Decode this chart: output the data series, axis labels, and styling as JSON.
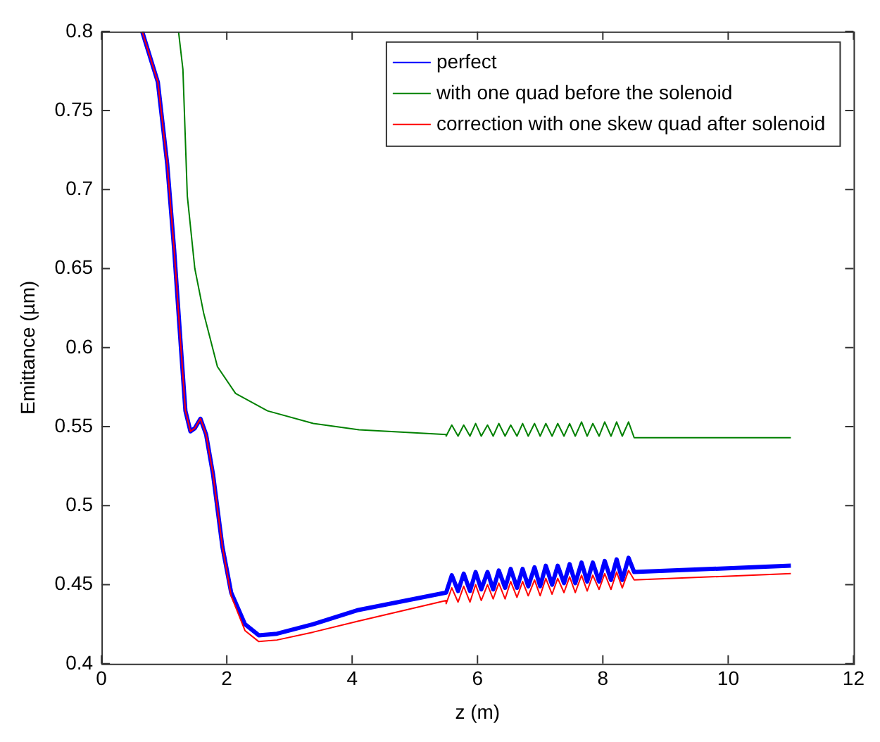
{
  "chart_data": {
    "type": "line",
    "xlabel": "z (m)",
    "ylabel": "Emittance (µm)",
    "xlim": [
      0,
      12
    ],
    "ylim": [
      0.4,
      0.8
    ],
    "xticks": [
      0,
      2,
      4,
      6,
      8,
      10,
      12
    ],
    "yticks": [
      0.4,
      0.45,
      0.5,
      0.55,
      0.6,
      0.65,
      0.7,
      0.75,
      0.8
    ],
    "grid": false,
    "legend": "top right",
    "marker": "none",
    "line_style": "solid",
    "series": [
      {
        "name": "perfect",
        "color": "#0000ff",
        "x": [
          0.65,
          0.9,
          1.05,
          1.16,
          1.27,
          1.34,
          1.42,
          1.49,
          1.58,
          1.67,
          1.78,
          1.93,
          2.07,
          2.29,
          2.51,
          2.8,
          3.38,
          4.1,
          5.5,
          5.5,
          5.59,
          5.69,
          5.78,
          5.88,
          5.97,
          6.06,
          6.16,
          6.25,
          6.34,
          6.44,
          6.53,
          6.63,
          6.72,
          6.81,
          6.91,
          7.0,
          7.09,
          7.19,
          7.28,
          7.38,
          7.47,
          7.56,
          7.66,
          7.75,
          7.84,
          7.94,
          8.03,
          8.13,
          8.22,
          8.31,
          8.41,
          8.5,
          11
        ],
        "values": [
          0.8,
          0.768,
          0.716,
          0.662,
          0.599,
          0.56,
          0.547,
          0.549,
          0.555,
          0.545,
          0.52,
          0.474,
          0.445,
          0.425,
          0.418,
          0.419,
          0.425,
          0.434,
          0.445,
          0.445,
          0.456,
          0.446,
          0.457,
          0.446,
          0.458,
          0.447,
          0.458,
          0.447,
          0.459,
          0.448,
          0.46,
          0.448,
          0.46,
          0.449,
          0.461,
          0.449,
          0.462,
          0.45,
          0.462,
          0.451,
          0.463,
          0.451,
          0.464,
          0.452,
          0.464,
          0.452,
          0.465,
          0.453,
          0.466,
          0.453,
          0.467,
          0.458,
          0.462
        ]
      },
      {
        "name": "with one quad before the solenoid",
        "color": "#008000",
        "x": [
          1.23,
          1.3,
          1.37,
          1.49,
          1.63,
          1.85,
          2.14,
          2.65,
          3.38,
          4.11,
          5.5,
          5.5,
          5.59,
          5.69,
          5.78,
          5.88,
          5.97,
          6.06,
          6.16,
          6.25,
          6.34,
          6.44,
          6.53,
          6.63,
          6.72,
          6.81,
          6.91,
          7.0,
          7.09,
          7.19,
          7.28,
          7.38,
          7.47,
          7.56,
          7.66,
          7.75,
          7.84,
          7.94,
          8.03,
          8.13,
          8.22,
          8.31,
          8.41,
          8.5,
          11
        ],
        "values": [
          0.8,
          0.776,
          0.696,
          0.65,
          0.622,
          0.588,
          0.571,
          0.56,
          0.552,
          0.548,
          0.545,
          0.544,
          0.551,
          0.544,
          0.551,
          0.544,
          0.552,
          0.544,
          0.551,
          0.544,
          0.552,
          0.544,
          0.551,
          0.544,
          0.552,
          0.544,
          0.552,
          0.544,
          0.552,
          0.544,
          0.552,
          0.544,
          0.552,
          0.544,
          0.553,
          0.544,
          0.552,
          0.544,
          0.553,
          0.544,
          0.553,
          0.544,
          0.553,
          0.543,
          0.543
        ]
      },
      {
        "name": "correction with one skew quad after solenoid",
        "color": "#ff0000",
        "x": [
          0.65,
          0.9,
          1.05,
          1.16,
          1.27,
          1.34,
          1.42,
          1.49,
          1.58,
          1.67,
          1.78,
          1.93,
          2.07,
          2.29,
          2.51,
          2.8,
          3.38,
          4.1,
          5.5,
          5.5,
          5.59,
          5.69,
          5.78,
          5.88,
          5.97,
          6.06,
          6.16,
          6.25,
          6.34,
          6.44,
          6.53,
          6.63,
          6.72,
          6.81,
          6.91,
          7.0,
          7.09,
          7.19,
          7.28,
          7.38,
          7.47,
          7.56,
          7.66,
          7.75,
          7.84,
          7.94,
          8.03,
          8.13,
          8.22,
          8.31,
          8.41,
          8.5,
          11
        ],
        "values": [
          0.8,
          0.768,
          0.716,
          0.662,
          0.599,
          0.56,
          0.547,
          0.549,
          0.555,
          0.545,
          0.52,
          0.474,
          0.443,
          0.421,
          0.414,
          0.415,
          0.42,
          0.427,
          0.44,
          0.438,
          0.448,
          0.439,
          0.449,
          0.439,
          0.45,
          0.44,
          0.45,
          0.441,
          0.451,
          0.441,
          0.452,
          0.442,
          0.452,
          0.443,
          0.453,
          0.443,
          0.454,
          0.444,
          0.454,
          0.445,
          0.455,
          0.445,
          0.456,
          0.446,
          0.456,
          0.447,
          0.457,
          0.447,
          0.458,
          0.448,
          0.459,
          0.453,
          0.457
        ]
      }
    ]
  }
}
